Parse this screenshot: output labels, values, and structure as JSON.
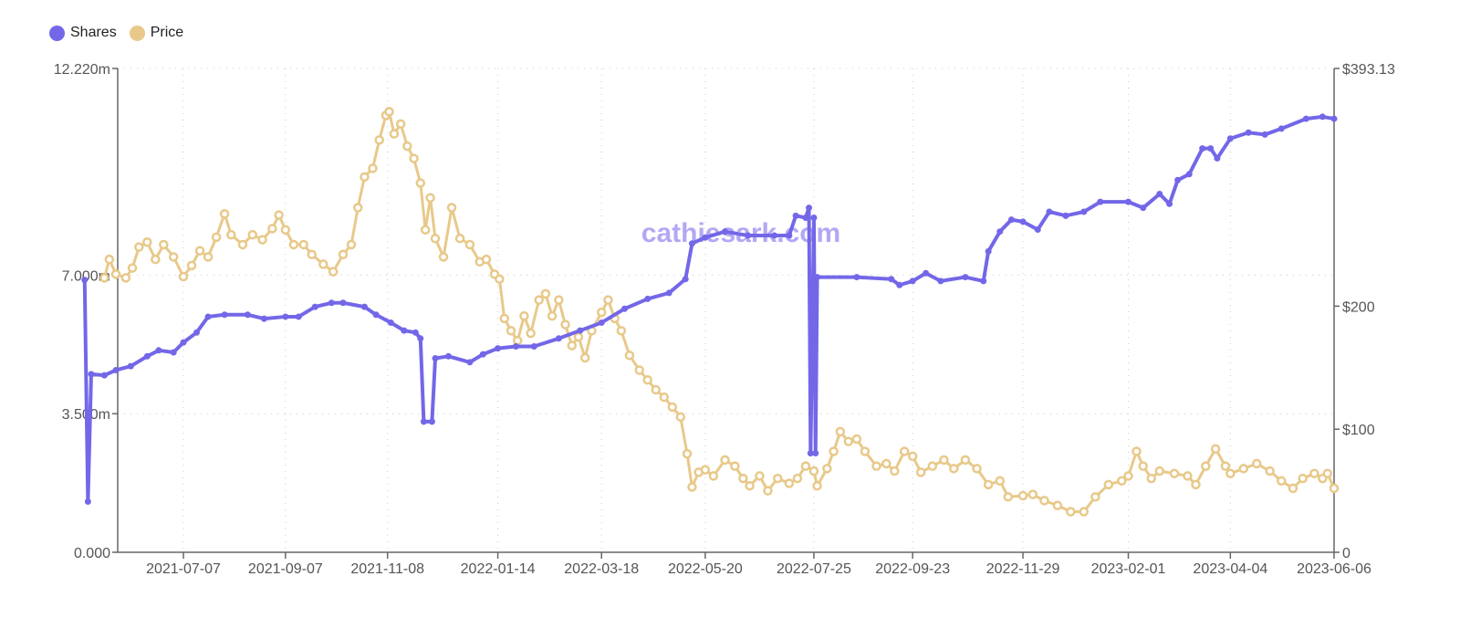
{
  "legend": {
    "items": [
      {
        "label": "Shares",
        "color": "#7367e8"
      },
      {
        "label": "Price",
        "color": "#e8c98a"
      }
    ]
  },
  "watermark": "cathiesark.com",
  "chart_data": {
    "type": "line",
    "title": "",
    "xlabel": "",
    "ylabel_left": "Shares",
    "ylabel_right": "Price",
    "grid": true,
    "legend_position": "top-left",
    "x_ticks": [
      "2021-07-07",
      "2021-09-07",
      "2021-11-08",
      "2022-01-14",
      "2022-03-18",
      "2022-05-20",
      "2022-07-25",
      "2022-09-23",
      "2022-11-29",
      "2023-02-01",
      "2023-04-04",
      "2023-06-06"
    ],
    "y_left": {
      "ticks": [
        "0.000",
        "3.500m",
        "7.000m",
        "12.220m"
      ],
      "tick_values": [
        0,
        3.5,
        7.0,
        12.22
      ],
      "range": [
        0,
        12.22
      ],
      "unit": "m"
    },
    "y_right": {
      "ticks": [
        "0",
        "$100",
        "$200",
        "$393.13"
      ],
      "tick_values": [
        0,
        100,
        200,
        393.13
      ],
      "range": [
        0,
        393.13
      ]
    },
    "x_range": [
      "2021-05-08",
      "2023-06-06"
    ],
    "series": [
      {
        "name": "Shares",
        "axis": "left",
        "color": "#7367e8",
        "unit": "millions",
        "points": [
          [
            "2021-05-08",
            6.88
          ],
          [
            "2021-05-10",
            1.28
          ],
          [
            "2021-05-12",
            4.5
          ],
          [
            "2021-05-20",
            4.47
          ],
          [
            "2021-05-27",
            4.6
          ],
          [
            "2021-06-05",
            4.7
          ],
          [
            "2021-06-15",
            4.95
          ],
          [
            "2021-06-22",
            5.1
          ],
          [
            "2021-07-01",
            5.05
          ],
          [
            "2021-07-07",
            5.3
          ],
          [
            "2021-07-15",
            5.55
          ],
          [
            "2021-07-22",
            5.95
          ],
          [
            "2021-08-01",
            6.0
          ],
          [
            "2021-08-15",
            6.0
          ],
          [
            "2021-08-25",
            5.9
          ],
          [
            "2021-09-07",
            5.95
          ],
          [
            "2021-09-15",
            5.95
          ],
          [
            "2021-09-25",
            6.2
          ],
          [
            "2021-10-05",
            6.3
          ],
          [
            "2021-10-12",
            6.3
          ],
          [
            "2021-10-25",
            6.2
          ],
          [
            "2021-11-01",
            6.0
          ],
          [
            "2021-11-10",
            5.8
          ],
          [
            "2021-11-18",
            5.6
          ],
          [
            "2021-11-25",
            5.55
          ],
          [
            "2021-11-28",
            5.4
          ],
          [
            "2021-11-30",
            3.3
          ],
          [
            "2021-12-05",
            3.3
          ],
          [
            "2021-12-07",
            4.9
          ],
          [
            "2021-12-15",
            4.95
          ],
          [
            "2021-12-28",
            4.8
          ],
          [
            "2022-01-05",
            5.0
          ],
          [
            "2022-01-14",
            5.15
          ],
          [
            "2022-01-25",
            5.2
          ],
          [
            "2022-02-05",
            5.2
          ],
          [
            "2022-02-20",
            5.4
          ],
          [
            "2022-03-05",
            5.6
          ],
          [
            "2022-03-18",
            5.8
          ],
          [
            "2022-04-01",
            6.15
          ],
          [
            "2022-04-15",
            6.4
          ],
          [
            "2022-04-28",
            6.55
          ],
          [
            "2022-05-08",
            6.9
          ],
          [
            "2022-05-12",
            7.8
          ],
          [
            "2022-05-20",
            7.95
          ],
          [
            "2022-06-01",
            8.1
          ],
          [
            "2022-06-15",
            8.0
          ],
          [
            "2022-07-01",
            8.0
          ],
          [
            "2022-07-10",
            8.0
          ],
          [
            "2022-07-14",
            8.5
          ],
          [
            "2022-07-20",
            8.45
          ],
          [
            "2022-07-22",
            8.7
          ],
          [
            "2022-07-23",
            2.5
          ],
          [
            "2022-07-25",
            8.45
          ],
          [
            "2022-07-26",
            2.5
          ],
          [
            "2022-07-27",
            6.95
          ],
          [
            "2022-08-20",
            6.95
          ],
          [
            "2022-09-10",
            6.9
          ],
          [
            "2022-09-15",
            6.75
          ],
          [
            "2022-09-23",
            6.85
          ],
          [
            "2022-10-01",
            7.05
          ],
          [
            "2022-10-10",
            6.85
          ],
          [
            "2022-10-25",
            6.95
          ],
          [
            "2022-11-05",
            6.85
          ],
          [
            "2022-11-08",
            7.6
          ],
          [
            "2022-11-15",
            8.1
          ],
          [
            "2022-11-22",
            8.4
          ],
          [
            "2022-11-29",
            8.35
          ],
          [
            "2022-12-08",
            8.15
          ],
          [
            "2022-12-15",
            8.6
          ],
          [
            "2022-12-25",
            8.5
          ],
          [
            "2023-01-05",
            8.6
          ],
          [
            "2023-01-15",
            8.85
          ],
          [
            "2023-02-01",
            8.85
          ],
          [
            "2023-02-10",
            8.7
          ],
          [
            "2023-02-20",
            9.05
          ],
          [
            "2023-02-26",
            8.8
          ],
          [
            "2023-03-03",
            9.4
          ],
          [
            "2023-03-10",
            9.55
          ],
          [
            "2023-03-18",
            10.2
          ],
          [
            "2023-03-23",
            10.2
          ],
          [
            "2023-03-27",
            9.95
          ],
          [
            "2023-04-04",
            10.45
          ],
          [
            "2023-04-15",
            10.6
          ],
          [
            "2023-04-25",
            10.55
          ],
          [
            "2023-05-05",
            10.7
          ],
          [
            "2023-05-20",
            10.95
          ],
          [
            "2023-05-30",
            11.0
          ],
          [
            "2023-06-06",
            10.95
          ]
        ]
      },
      {
        "name": "Price",
        "axis": "right",
        "color": "#e8c98a",
        "unit": "USD",
        "points": [
          [
            "2021-05-20",
            223
          ],
          [
            "2021-05-23",
            238
          ],
          [
            "2021-05-27",
            226
          ],
          [
            "2021-06-02",
            223
          ],
          [
            "2021-06-06",
            231
          ],
          [
            "2021-06-10",
            248
          ],
          [
            "2021-06-15",
            252
          ],
          [
            "2021-06-20",
            238
          ],
          [
            "2021-06-25",
            250
          ],
          [
            "2021-07-01",
            240
          ],
          [
            "2021-07-07",
            224
          ],
          [
            "2021-07-12",
            233
          ],
          [
            "2021-07-17",
            245
          ],
          [
            "2021-07-22",
            240
          ],
          [
            "2021-07-27",
            256
          ],
          [
            "2021-08-01",
            275
          ],
          [
            "2021-08-05",
            258
          ],
          [
            "2021-08-12",
            250
          ],
          [
            "2021-08-18",
            258
          ],
          [
            "2021-08-24",
            254
          ],
          [
            "2021-08-30",
            263
          ],
          [
            "2021-09-03",
            274
          ],
          [
            "2021-09-07",
            262
          ],
          [
            "2021-09-12",
            250
          ],
          [
            "2021-09-18",
            250
          ],
          [
            "2021-09-23",
            242
          ],
          [
            "2021-09-30",
            234
          ],
          [
            "2021-10-06",
            228
          ],
          [
            "2021-10-12",
            242
          ],
          [
            "2021-10-17",
            250
          ],
          [
            "2021-10-21",
            280
          ],
          [
            "2021-10-25",
            305
          ],
          [
            "2021-10-30",
            312
          ],
          [
            "2021-11-03",
            335
          ],
          [
            "2021-11-07",
            355
          ],
          [
            "2021-11-09",
            358
          ],
          [
            "2021-11-12",
            340
          ],
          [
            "2021-11-16",
            348
          ],
          [
            "2021-11-20",
            330
          ],
          [
            "2021-11-24",
            320
          ],
          [
            "2021-11-28",
            300
          ],
          [
            "2021-12-01",
            262
          ],
          [
            "2021-12-04",
            288
          ],
          [
            "2021-12-07",
            255
          ],
          [
            "2021-12-12",
            240
          ],
          [
            "2021-12-17",
            280
          ],
          [
            "2021-12-22",
            255
          ],
          [
            "2021-12-28",
            250
          ],
          [
            "2022-01-03",
            236
          ],
          [
            "2022-01-07",
            238
          ],
          [
            "2022-01-12",
            226
          ],
          [
            "2022-01-15",
            222
          ],
          [
            "2022-01-18",
            190
          ],
          [
            "2022-01-22",
            180
          ],
          [
            "2022-01-26",
            172
          ],
          [
            "2022-01-30",
            192
          ],
          [
            "2022-02-03",
            178
          ],
          [
            "2022-02-08",
            205
          ],
          [
            "2022-02-12",
            210
          ],
          [
            "2022-02-16",
            192
          ],
          [
            "2022-02-20",
            205
          ],
          [
            "2022-02-24",
            185
          ],
          [
            "2022-02-28",
            168
          ],
          [
            "2022-03-04",
            175
          ],
          [
            "2022-03-08",
            158
          ],
          [
            "2022-03-12",
            180
          ],
          [
            "2022-03-18",
            195
          ],
          [
            "2022-03-22",
            205
          ],
          [
            "2022-03-26",
            190
          ],
          [
            "2022-03-30",
            180
          ],
          [
            "2022-04-04",
            160
          ],
          [
            "2022-04-10",
            148
          ],
          [
            "2022-04-15",
            140
          ],
          [
            "2022-04-20",
            132
          ],
          [
            "2022-04-25",
            126
          ],
          [
            "2022-04-30",
            118
          ],
          [
            "2022-05-05",
            110
          ],
          [
            "2022-05-09",
            80
          ],
          [
            "2022-05-12",
            53
          ],
          [
            "2022-05-16",
            65
          ],
          [
            "2022-05-20",
            67
          ],
          [
            "2022-05-25",
            62
          ],
          [
            "2022-06-01",
            75
          ],
          [
            "2022-06-07",
            70
          ],
          [
            "2022-06-12",
            60
          ],
          [
            "2022-06-16",
            54
          ],
          [
            "2022-06-22",
            62
          ],
          [
            "2022-06-27",
            50
          ],
          [
            "2022-07-03",
            60
          ],
          [
            "2022-07-10",
            56
          ],
          [
            "2022-07-15",
            60
          ],
          [
            "2022-07-20",
            70
          ],
          [
            "2022-07-25",
            66
          ],
          [
            "2022-07-27",
            54
          ],
          [
            "2022-08-02",
            68
          ],
          [
            "2022-08-06",
            82
          ],
          [
            "2022-08-10",
            98
          ],
          [
            "2022-08-15",
            90
          ],
          [
            "2022-08-20",
            92
          ],
          [
            "2022-08-25",
            82
          ],
          [
            "2022-09-01",
            70
          ],
          [
            "2022-09-07",
            72
          ],
          [
            "2022-09-12",
            66
          ],
          [
            "2022-09-18",
            82
          ],
          [
            "2022-09-23",
            78
          ],
          [
            "2022-09-28",
            65
          ],
          [
            "2022-10-05",
            70
          ],
          [
            "2022-10-12",
            75
          ],
          [
            "2022-10-18",
            68
          ],
          [
            "2022-10-25",
            75
          ],
          [
            "2022-11-01",
            68
          ],
          [
            "2022-11-08",
            55
          ],
          [
            "2022-11-15",
            58
          ],
          [
            "2022-11-20",
            45
          ],
          [
            "2022-11-29",
            46
          ],
          [
            "2022-12-05",
            47
          ],
          [
            "2022-12-12",
            42
          ],
          [
            "2022-12-20",
            38
          ],
          [
            "2022-12-28",
            33
          ],
          [
            "2023-01-05",
            33
          ],
          [
            "2023-01-12",
            45
          ],
          [
            "2023-01-20",
            55
          ],
          [
            "2023-01-28",
            58
          ],
          [
            "2023-02-01",
            62
          ],
          [
            "2023-02-06",
            82
          ],
          [
            "2023-02-10",
            70
          ],
          [
            "2023-02-15",
            60
          ],
          [
            "2023-02-20",
            66
          ],
          [
            "2023-03-01",
            64
          ],
          [
            "2023-03-09",
            62
          ],
          [
            "2023-03-14",
            55
          ],
          [
            "2023-03-20",
            70
          ],
          [
            "2023-03-26",
            84
          ],
          [
            "2023-04-01",
            70
          ],
          [
            "2023-04-04",
            64
          ],
          [
            "2023-04-12",
            68
          ],
          [
            "2023-04-20",
            72
          ],
          [
            "2023-04-28",
            66
          ],
          [
            "2023-05-05",
            58
          ],
          [
            "2023-05-12",
            52
          ],
          [
            "2023-05-18",
            60
          ],
          [
            "2023-05-25",
            64
          ],
          [
            "2023-05-30",
            60
          ],
          [
            "2023-06-02",
            64
          ],
          [
            "2023-06-06",
            52
          ]
        ]
      }
    ]
  }
}
